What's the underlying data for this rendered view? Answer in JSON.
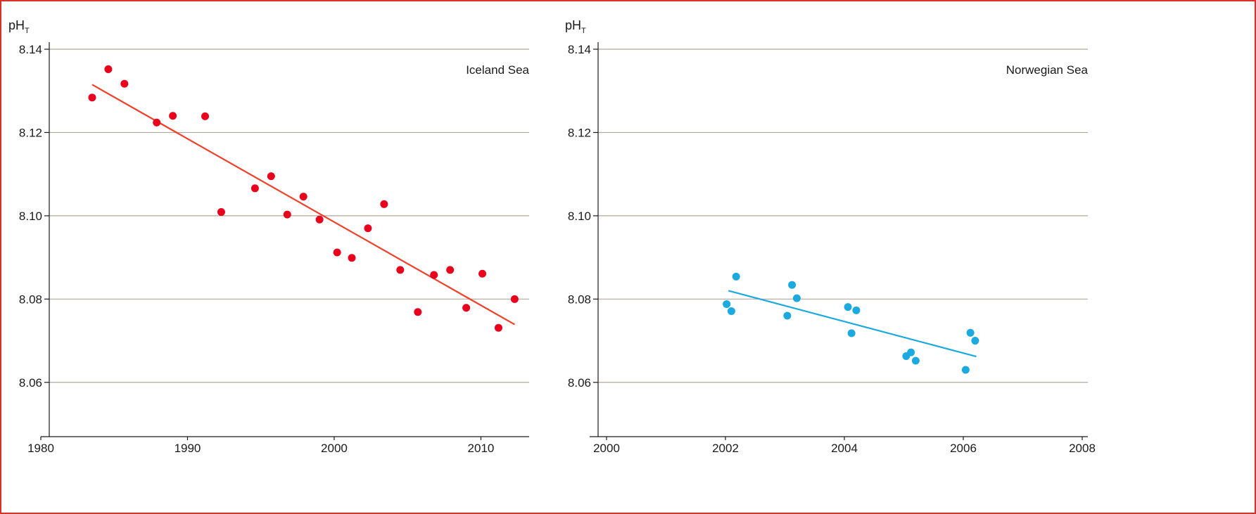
{
  "chart_data": [
    {
      "type": "scatter",
      "ylabel": "pH",
      "ylabel_subscript": "T",
      "annotation": "Iceland Sea",
      "xlim": [
        1980,
        2013
      ],
      "ylim": [
        8.05,
        8.14
      ],
      "x_ticks": [
        "1980",
        "1990",
        "2000",
        "2010"
      ],
      "y_ticks": [
        "8.14",
        "8.12",
        "8.10",
        "8.08",
        "8.06"
      ],
      "grid": true,
      "marker_color": "#e8001c",
      "series": [
        {
          "x": [
            1983.5,
            1984.6,
            1985.7,
            1987.9,
            1989.0,
            1991.2,
            1992.3,
            1994.6,
            1995.7,
            1996.8,
            1997.9,
            1999.0,
            2000.2,
            2001.2,
            2002.3,
            2003.4,
            2004.5,
            2005.7,
            2006.8,
            2007.9,
            2009.0,
            2010.1,
            2011.2,
            2012.3
          ],
          "y": [
            8.1284,
            8.1352,
            8.1317,
            8.1224,
            8.124,
            8.1239,
            8.1009,
            8.1066,
            8.1095,
            8.1003,
            8.1046,
            8.0991,
            8.0912,
            8.0899,
            8.097,
            8.1028,
            8.087,
            8.0769,
            8.0858,
            8.087,
            8.0779,
            8.0861,
            8.0731,
            8.08
          ]
        }
      ],
      "trendline": {
        "x": [
          1983.5,
          2012.3
        ],
        "y": [
          8.1315,
          8.0739
        ],
        "color": "#f0402a"
      }
    },
    {
      "type": "scatter",
      "ylabel": "pH",
      "ylabel_subscript": "T",
      "annotation": "Norwegian Sea",
      "xlim": [
        2000,
        2008
      ],
      "ylim": [
        8.05,
        8.14
      ],
      "x_ticks": [
        "2000",
        "2002",
        "2004",
        "2006",
        "2008"
      ],
      "y_ticks": [
        "8.14",
        "8.12",
        "8.10",
        "8.08",
        "8.06"
      ],
      "grid": true,
      "marker_color": "#1ba9df",
      "series": [
        {
          "x": [
            2002.02,
            2002.1,
            2002.18,
            2003.04,
            2003.12,
            2003.2,
            2004.06,
            2004.12,
            2004.2,
            2005.04,
            2005.12,
            2005.2,
            2006.04,
            2006.12,
            2006.2
          ],
          "y": [
            8.0788,
            8.0771,
            8.0854,
            8.076,
            8.0834,
            8.0802,
            8.0781,
            8.0718,
            8.0773,
            8.0663,
            8.0672,
            8.0652,
            8.063,
            8.0719,
            8.07
          ]
        }
      ],
      "trendline": {
        "x": [
          2002.05,
          2006.22
        ],
        "y": [
          8.082,
          8.0662
        ],
        "color": "#1ba9df"
      }
    }
  ]
}
